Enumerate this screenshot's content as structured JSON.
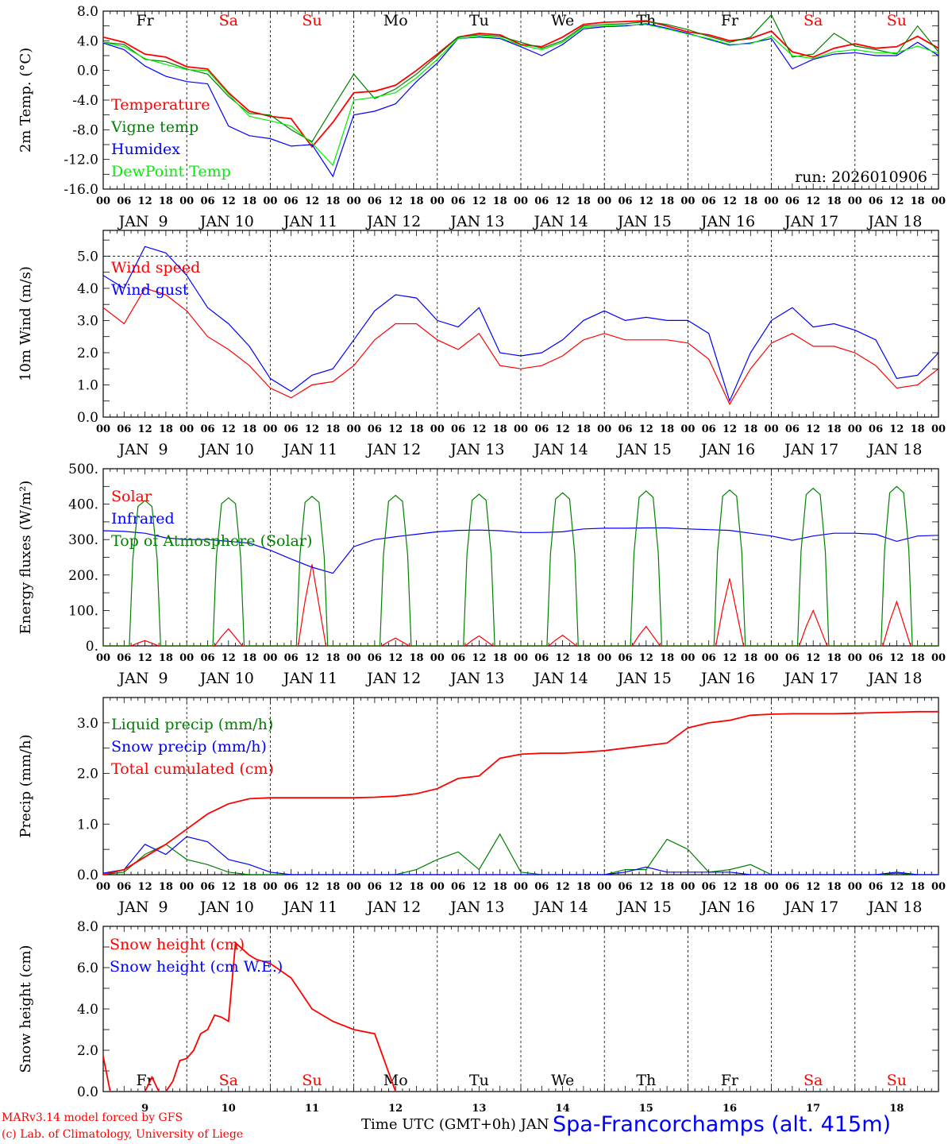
{
  "colors": {
    "red": "#ff0000",
    "green": "#008000",
    "blue": "#0000ff",
    "lime": "#00ee00",
    "black": "#000000"
  },
  "axis": {
    "hour_ticks": [
      "00",
      "06",
      "12",
      "18"
    ],
    "last_hour": "00",
    "dates": [
      "JAN  9",
      "JAN 10",
      "JAN 11",
      "JAN 12",
      "JAN 13",
      "JAN 14",
      "JAN 15",
      "JAN 16",
      "JAN 17",
      "JAN 18"
    ],
    "days": [
      {
        "label": "Fr",
        "color": "#000000"
      },
      {
        "label": "Sa",
        "color": "#ff0000"
      },
      {
        "label": "Su",
        "color": "#ff0000"
      },
      {
        "label": "Mo",
        "color": "#000000"
      },
      {
        "label": "Tu",
        "color": "#000000"
      },
      {
        "label": "We",
        "color": "#000000"
      },
      {
        "label": "Th",
        "color": "#000000"
      },
      {
        "label": "Fr",
        "color": "#000000"
      },
      {
        "label": "Sa",
        "color": "#ff0000"
      },
      {
        "label": "Su",
        "color": "#ff0000"
      }
    ],
    "day_numbers": [
      "9",
      "10",
      "11",
      "12",
      "13",
      "14",
      "15",
      "16",
      "17",
      "18"
    ],
    "xlabel": "Time UTC (GMT+0h) JAN"
  },
  "footer": {
    "model": "MARv3.14 model forced by GFS",
    "copyright": "(c) Lab. of Climatology, University of Liege",
    "station": "Spa-Francorchamps (alt. 415m)"
  },
  "chart_data": [
    {
      "type": "line",
      "ylabel": "2m Temp. (°C)",
      "ylim": [
        -16,
        8
      ],
      "yticks": [
        "8.0",
        "4.0",
        "0.0",
        "-4.0",
        "-8.0",
        "-12.0",
        "-16.0"
      ],
      "ytick_values": [
        8,
        4,
        0,
        -4,
        -8,
        -12,
        -16
      ],
      "x_hours": [
        0,
        6,
        12,
        18,
        24,
        30,
        36,
        42,
        48,
        54,
        60,
        66,
        72,
        78,
        84,
        90,
        96,
        102,
        108,
        114,
        120,
        126,
        132,
        138,
        144,
        150,
        156,
        162,
        168,
        174,
        180,
        186,
        192,
        198,
        204,
        210,
        216,
        222,
        228,
        234,
        240
      ],
      "annotation": "run: 2026010906",
      "series": [
        {
          "name": "Temperature",
          "color": "#ff0000",
          "values": [
            4.5,
            3.8,
            2.2,
            1.8,
            0.5,
            0.2,
            -3.0,
            -5.5,
            -6.2,
            -6.5,
            -10.3,
            -7.0,
            -3.0,
            -2.8,
            -2.0,
            0.0,
            2.2,
            4.5,
            5.0,
            4.8,
            3.5,
            3.2,
            4.5,
            6.2,
            6.5,
            6.6,
            6.7,
            6.0,
            5.2,
            4.8,
            4.0,
            4.3,
            5.3,
            2.5,
            1.8,
            3.0,
            3.6,
            3.0,
            3.2,
            4.6,
            3.0
          ]
        },
        {
          "name": "Vigne temp",
          "color": "#008000",
          "values": [
            3.8,
            3.5,
            1.5,
            1.2,
            0.2,
            -0.5,
            -3.5,
            -5.8,
            -6.0,
            -8.0,
            -9.6,
            -5.0,
            -0.5,
            -3.8,
            -2.5,
            -0.5,
            2.0,
            4.5,
            4.8,
            4.6,
            3.8,
            3.0,
            4.0,
            6.0,
            6.2,
            6.3,
            6.6,
            6.2,
            5.5,
            4.6,
            3.8,
            4.5,
            7.5,
            1.8,
            2.2,
            5.0,
            3.3,
            2.8,
            2.2,
            6.0,
            2.5
          ]
        },
        {
          "name": "Humidex",
          "color": "#0000ff",
          "values": [
            3.7,
            2.8,
            0.6,
            -0.8,
            -1.5,
            -1.8,
            -7.5,
            -8.8,
            -9.2,
            -10.2,
            -10.0,
            -14.3,
            -6.0,
            -5.5,
            -4.5,
            -1.5,
            1.0,
            4.3,
            4.5,
            4.3,
            3.2,
            2.0,
            3.5,
            5.6,
            5.9,
            6.0,
            6.3,
            5.7,
            5.0,
            4.2,
            3.4,
            3.7,
            4.3,
            0.2,
            1.5,
            2.2,
            2.4,
            2.0,
            2.0,
            3.8,
            2.0
          ]
        },
        {
          "name": "DewPoint Temp",
          "color": "#00ee00",
          "values": [
            3.8,
            3.2,
            1.6,
            0.8,
            0.1,
            0.0,
            -3.2,
            -6.2,
            -6.8,
            -7.5,
            -9.8,
            -12.8,
            -4.0,
            -3.6,
            -3.0,
            -1.0,
            1.5,
            4.3,
            4.6,
            4.4,
            3.4,
            2.8,
            3.8,
            5.8,
            6.0,
            6.1,
            6.2,
            5.6,
            4.9,
            4.3,
            3.5,
            3.6,
            4.6,
            2.0,
            1.6,
            2.5,
            2.8,
            2.4,
            2.4,
            3.3,
            2.3
          ]
        }
      ]
    },
    {
      "type": "line",
      "ylabel": "10m Wind (m/s)",
      "ylim": [
        0,
        5.8
      ],
      "yticks": [
        "5.0",
        "4.0",
        "3.0",
        "2.0",
        "1.0",
        "0.0"
      ],
      "ytick_values": [
        5,
        4,
        3,
        2,
        1,
        0
      ],
      "dashed_y": 5.0,
      "x_hours": [
        0,
        6,
        12,
        18,
        24,
        30,
        36,
        42,
        48,
        54,
        60,
        66,
        72,
        78,
        84,
        90,
        96,
        102,
        108,
        114,
        120,
        126,
        132,
        138,
        144,
        150,
        156,
        162,
        168,
        174,
        180,
        186,
        192,
        198,
        204,
        210,
        216,
        222,
        228,
        234,
        240
      ],
      "series": [
        {
          "name": "Wind speed",
          "color": "#ff0000",
          "values": [
            3.4,
            2.9,
            4.0,
            3.8,
            3.3,
            2.5,
            2.1,
            1.6,
            0.9,
            0.6,
            1.0,
            1.1,
            1.6,
            2.4,
            2.9,
            2.9,
            2.4,
            2.1,
            2.6,
            1.6,
            1.5,
            1.6,
            1.9,
            2.4,
            2.6,
            2.4,
            2.4,
            2.4,
            2.3,
            1.8,
            0.4,
            1.5,
            2.3,
            2.6,
            2.2,
            2.2,
            2.0,
            1.6,
            0.9,
            1.0,
            1.5
          ]
        },
        {
          "name": "Wind gust",
          "color": "#0000ff",
          "values": [
            4.4,
            4.0,
            5.3,
            5.1,
            4.4,
            3.4,
            2.9,
            2.2,
            1.2,
            0.8,
            1.3,
            1.5,
            2.4,
            3.3,
            3.8,
            3.7,
            3.0,
            2.8,
            3.4,
            2.0,
            1.9,
            2.0,
            2.4,
            3.0,
            3.3,
            3.0,
            3.1,
            3.0,
            3.0,
            2.6,
            0.5,
            2.0,
            3.0,
            3.4,
            2.8,
            2.9,
            2.7,
            2.4,
            1.2,
            1.3,
            2.0
          ]
        }
      ]
    },
    {
      "type": "line",
      "ylabel": "Energy fluxes (W/m²)",
      "ylim": [
        0,
        500
      ],
      "yticks": [
        "500.",
        "400.",
        "300.",
        "200.",
        "100.",
        "0."
      ],
      "ytick_values": [
        500,
        400,
        300,
        200,
        100,
        0
      ],
      "series": [
        {
          "name": "Solar",
          "color": "#ff0000",
          "daily_peaks": [
            15,
            48,
            230,
            22,
            28,
            30,
            55,
            190,
            100,
            125
          ]
        },
        {
          "name": "Infrared",
          "color": "#0000ff",
          "x_hours": [
            0,
            6,
            12,
            18,
            24,
            30,
            36,
            42,
            48,
            54,
            60,
            66,
            72,
            78,
            84,
            90,
            96,
            102,
            108,
            114,
            120,
            126,
            132,
            138,
            144,
            150,
            156,
            162,
            168,
            174,
            180,
            186,
            192,
            198,
            204,
            210,
            216,
            222,
            228,
            234,
            240
          ],
          "values": [
            325,
            323,
            318,
            305,
            300,
            300,
            295,
            290,
            270,
            245,
            222,
            205,
            280,
            300,
            308,
            315,
            322,
            326,
            327,
            325,
            320,
            320,
            322,
            330,
            332,
            332,
            333,
            333,
            330,
            328,
            326,
            318,
            310,
            298,
            310,
            318,
            318,
            315,
            295,
            310,
            312
          ]
        },
        {
          "name": "Top of Atmosphere (Solar)",
          "color": "#008000",
          "daily_peaks": [
            410,
            418,
            422,
            425,
            428,
            432,
            437,
            440,
            445,
            450
          ]
        }
      ]
    },
    {
      "type": "line",
      "ylabel": "Precip (mm/h)",
      "ylim": [
        0,
        3.5
      ],
      "yticks": [
        "3.0",
        "2.0",
        "1.0",
        "0.0"
      ],
      "ytick_values": [
        3,
        2,
        1,
        0
      ],
      "x_hours": [
        0,
        6,
        12,
        18,
        24,
        30,
        36,
        42,
        48,
        54,
        60,
        66,
        72,
        78,
        84,
        90,
        96,
        102,
        108,
        114,
        120,
        126,
        132,
        138,
        144,
        150,
        156,
        162,
        168,
        174,
        180,
        186,
        192,
        198,
        204,
        210,
        216,
        222,
        228,
        234,
        240
      ],
      "series": [
        {
          "name": "Liquid precip (mm/h)",
          "color": "#008000",
          "values": [
            0,
            0.05,
            0.4,
            0.6,
            0.3,
            0.2,
            0.05,
            0,
            0,
            0,
            0,
            0,
            0,
            0,
            0,
            0.1,
            0.3,
            0.45,
            0.1,
            0.8,
            0.05,
            0,
            0,
            0,
            0,
            0.1,
            0.1,
            0.7,
            0.5,
            0.05,
            0.1,
            0.2,
            0,
            0,
            0,
            0,
            0,
            0,
            0.03,
            0,
            0
          ]
        },
        {
          "name": "Snow precip (mm/h)",
          "color": "#0000ff",
          "values": [
            0.03,
            0.1,
            0.6,
            0.4,
            0.75,
            0.65,
            0.3,
            0.2,
            0.05,
            0,
            0,
            0,
            0,
            0,
            0,
            0,
            0,
            0,
            0,
            0,
            0,
            0,
            0,
            0,
            0,
            0.05,
            0.15,
            0.05,
            0.05,
            0.05,
            0.05,
            0,
            0,
            0,
            0,
            0,
            0,
            0,
            0.05,
            0,
            0
          ]
        },
        {
          "name": "Total cumulated (cm)",
          "color": "#ff0000",
          "values": [
            0,
            0.1,
            0.35,
            0.6,
            0.9,
            1.2,
            1.4,
            1.5,
            1.52,
            1.52,
            1.52,
            1.52,
            1.52,
            1.53,
            1.55,
            1.6,
            1.7,
            1.9,
            1.95,
            2.3,
            2.38,
            2.4,
            2.4,
            2.42,
            2.45,
            2.5,
            2.55,
            2.6,
            2.9,
            3.0,
            3.05,
            3.15,
            3.17,
            3.18,
            3.18,
            3.18,
            3.19,
            3.2,
            3.21,
            3.22,
            3.22
          ]
        }
      ]
    },
    {
      "type": "line",
      "ylabel": "Snow height (cm)",
      "ylim": [
        0,
        8
      ],
      "yticks": [
        "8.0",
        "6.0",
        "4.0",
        "2.0",
        "0.0"
      ],
      "ytick_values": [
        8,
        6,
        4,
        2,
        0
      ],
      "x_hours": [
        0,
        2,
        6,
        12,
        14,
        16,
        18,
        20,
        22,
        24,
        26,
        28,
        30,
        32,
        34,
        36,
        38,
        40,
        42,
        44,
        48,
        54,
        60,
        66,
        72,
        78,
        84,
        90,
        96,
        102,
        108,
        114,
        120,
        126,
        132,
        138,
        144,
        150,
        156,
        162,
        168,
        174,
        180,
        186,
        192,
        198,
        204,
        210,
        216,
        222,
        228,
        234,
        240
      ],
      "series": [
        {
          "name": "Snow height (cm)",
          "color": "#ff0000",
          "values": [
            1.7,
            0.0,
            0.0,
            0.0,
            0.7,
            0.0,
            0.0,
            0.5,
            1.5,
            1.6,
            2.0,
            2.8,
            3.0,
            3.7,
            3.6,
            3.4,
            7.2,
            6.9,
            6.6,
            6.4,
            6.2,
            5.5,
            4.0,
            3.4,
            3.0,
            2.8,
            0.0,
            0,
            0,
            0,
            0,
            0,
            0,
            0,
            0,
            0,
            0,
            0,
            0,
            0,
            0,
            0,
            0,
            0,
            0,
            0,
            0,
            0,
            0,
            0,
            0,
            0,
            0
          ]
        },
        {
          "name": "Snow height (cm W.E.)",
          "color": "#0000ff",
          "values": []
        }
      ]
    }
  ]
}
